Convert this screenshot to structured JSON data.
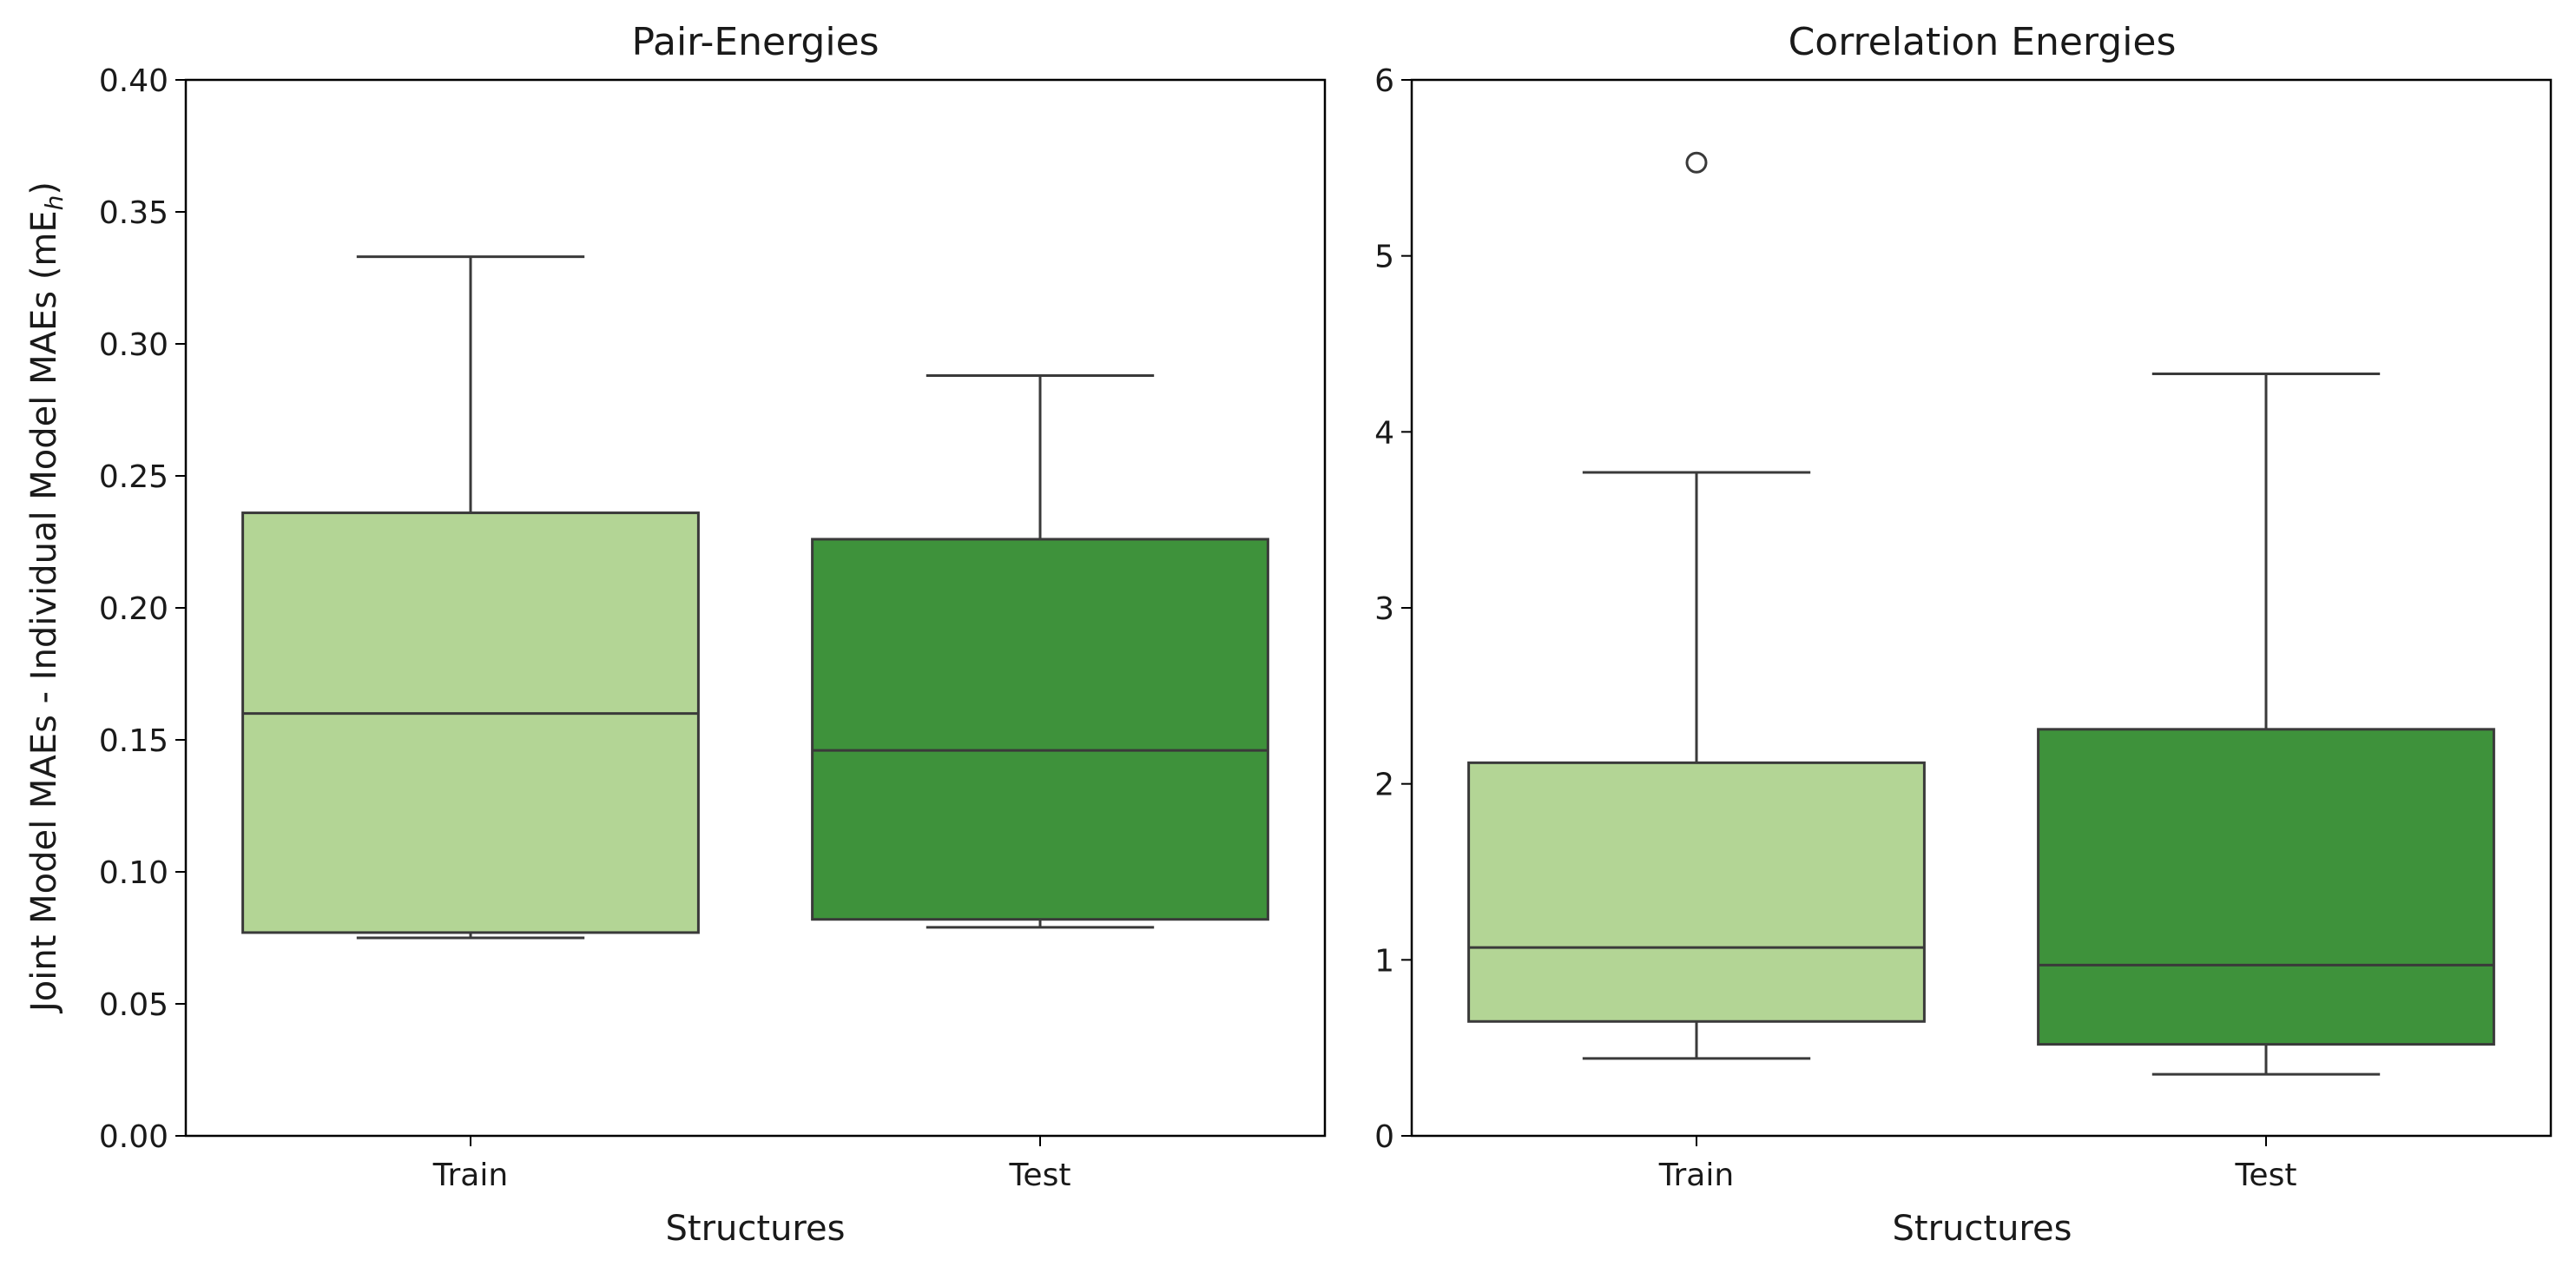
{
  "colors": {
    "train_box": "#b3d595",
    "test_box": "#3e923b",
    "line": "#3a3a3a",
    "frame": "#000000"
  },
  "shared": {
    "ylabel_main": "Joint Model MAEs - Individual Model MAEs (mE",
    "ylabel_sub": "h",
    "ylabel_close": ")"
  },
  "chart_data": [
    {
      "type": "box",
      "title": "Pair-Energies",
      "xlabel": "Structures",
      "categories": [
        "Train",
        "Test"
      ],
      "ylim": [
        0,
        0.4
      ],
      "yticks": [
        "0.00",
        "0.05",
        "0.10",
        "0.15",
        "0.20",
        "0.25",
        "0.30",
        "0.35",
        "0.40"
      ],
      "ytick_values": [
        0,
        0.05,
        0.1,
        0.15,
        0.2,
        0.25,
        0.3,
        0.35,
        0.4
      ],
      "grid": false,
      "boxes": [
        {
          "category": "Train",
          "whisker_low": 0.075,
          "q1": 0.077,
          "median": 0.16,
          "q3": 0.236,
          "whisker_high": 0.333,
          "outliers": []
        },
        {
          "category": "Test",
          "whisker_low": 0.079,
          "q1": 0.082,
          "median": 0.146,
          "q3": 0.226,
          "whisker_high": 0.288,
          "outliers": []
        }
      ]
    },
    {
      "type": "box",
      "title": "Correlation Energies",
      "xlabel": "Structures",
      "categories": [
        "Train",
        "Test"
      ],
      "ylim": [
        0,
        6
      ],
      "yticks": [
        "0",
        "1",
        "2",
        "3",
        "4",
        "5",
        "6"
      ],
      "ytick_values": [
        0,
        1,
        2,
        3,
        4,
        5,
        6
      ],
      "grid": false,
      "boxes": [
        {
          "category": "Train",
          "whisker_low": 0.44,
          "q1": 0.65,
          "median": 1.07,
          "q3": 2.12,
          "whisker_high": 3.77,
          "outliers": [
            5.53
          ]
        },
        {
          "category": "Test",
          "whisker_low": 0.35,
          "q1": 0.52,
          "median": 0.97,
          "q3": 2.31,
          "whisker_high": 4.33,
          "outliers": []
        }
      ]
    }
  ]
}
